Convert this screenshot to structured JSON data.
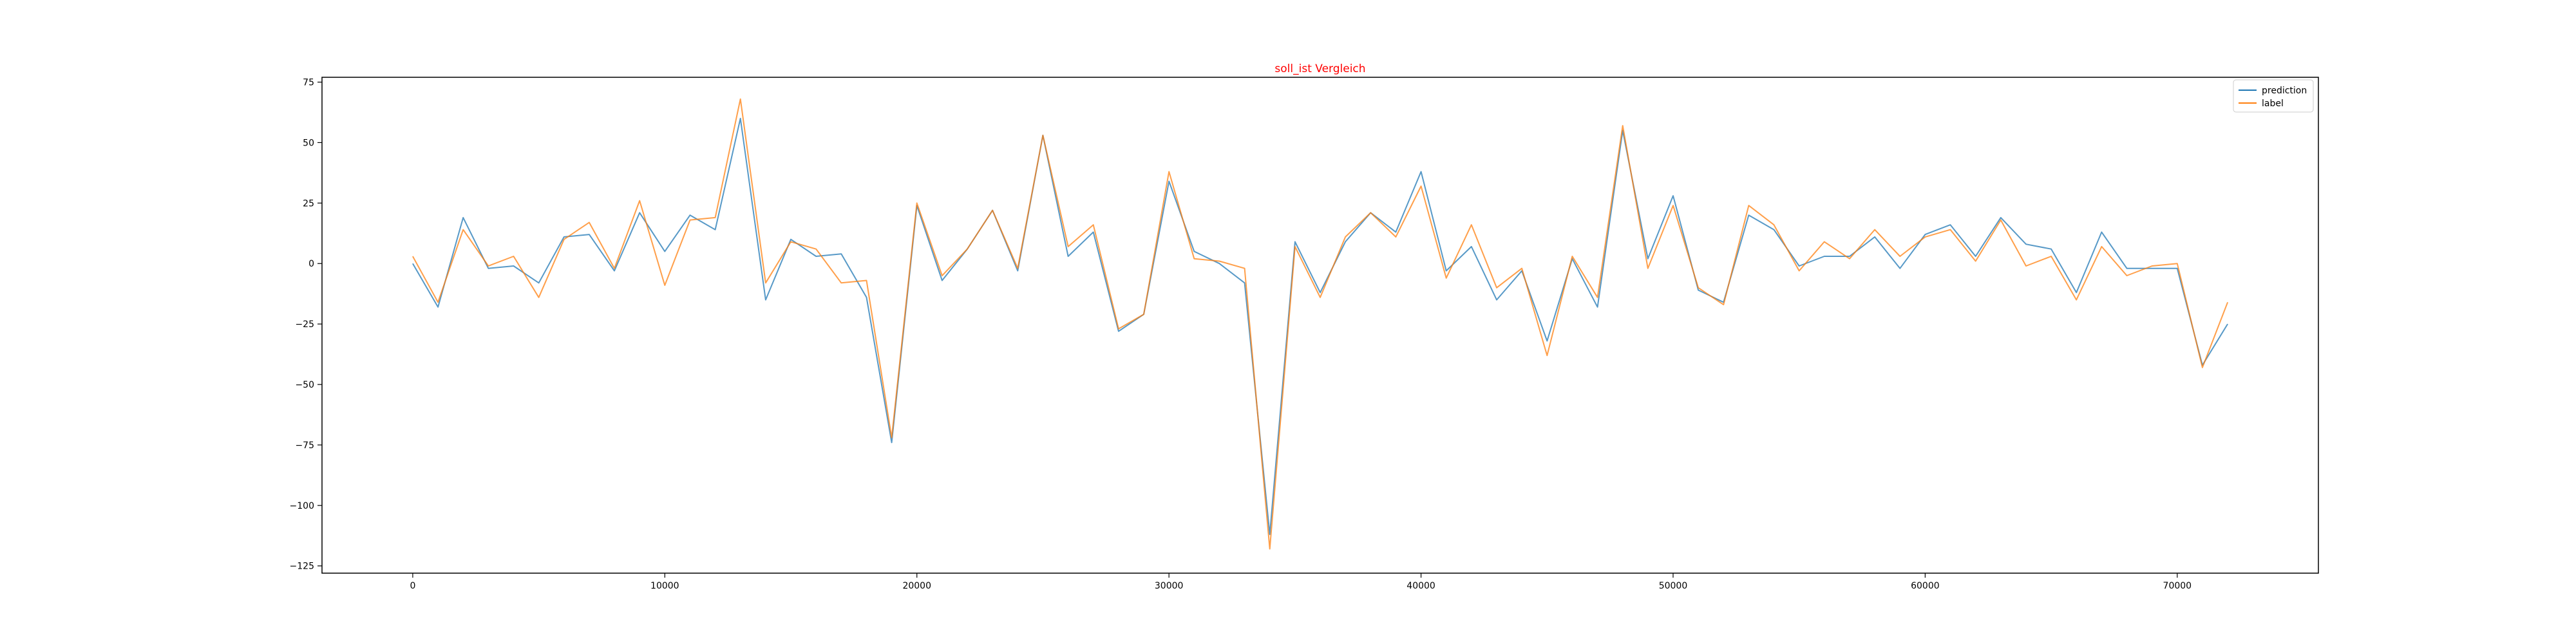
{
  "chart_data": {
    "type": "line",
    "title": "soll_ist Vergleich",
    "title_color": "#ff0000",
    "xlabel": "",
    "ylabel": "",
    "xlim": [
      -3600,
      75600
    ],
    "ylim": [
      -128,
      77
    ],
    "x_ticks": [
      0,
      10000,
      20000,
      30000,
      40000,
      50000,
      60000,
      70000
    ],
    "y_ticks": [
      75,
      50,
      25,
      0,
      -25,
      -50,
      -75,
      -100,
      -125
    ],
    "grid": false,
    "legend_position": "top-right",
    "x": [
      0,
      1000,
      2000,
      3000,
      4000,
      5000,
      6000,
      7000,
      8000,
      9000,
      10000,
      11000,
      12000,
      13000,
      14000,
      15000,
      16000,
      17000,
      18000,
      19000,
      20000,
      21000,
      22000,
      23000,
      24000,
      25000,
      26000,
      27000,
      28000,
      29000,
      30000,
      31000,
      32000,
      33000,
      34000,
      35000,
      36000,
      37000,
      38000,
      39000,
      40000,
      41000,
      42000,
      43000,
      44000,
      45000,
      46000,
      47000,
      48000,
      49000,
      50000,
      51000,
      52000,
      53000,
      54000,
      55000,
      56000,
      57000,
      58000,
      59000,
      60000,
      61000,
      62000,
      63000,
      64000,
      65000,
      66000,
      67000,
      68000,
      69000,
      70000,
      71000,
      72000
    ],
    "series": [
      {
        "name": "prediction",
        "color": "#1f77b4",
        "values": [
          0,
          -18,
          19,
          -2,
          -1,
          -8,
          11,
          12,
          -3,
          21,
          5,
          20,
          14,
          60,
          -15,
          10,
          3,
          4,
          -14,
          -74,
          24,
          -7,
          6,
          22,
          -3,
          53,
          3,
          13,
          -28,
          -21,
          34,
          5,
          0,
          -8,
          -112,
          9,
          -12,
          9,
          21,
          13,
          38,
          -3,
          7,
          -15,
          -3,
          -32,
          2,
          -18,
          55,
          2,
          28,
          -11,
          -16,
          20,
          14,
          -1,
          3,
          3,
          11,
          -2,
          12,
          16,
          3,
          19,
          8,
          6,
          -12,
          13,
          -2,
          -2,
          -2,
          -42,
          -25
        ]
      },
      {
        "name": "label",
        "color": "#ff7f0e",
        "values": [
          3,
          -16,
          14,
          -1,
          3,
          -14,
          10,
          17,
          -2,
          26,
          -9,
          18,
          19,
          68,
          -8,
          9,
          6,
          -8,
          -7,
          -72,
          25,
          -5,
          6,
          22,
          -2,
          53,
          7,
          16,
          -27,
          -21,
          38,
          2,
          1,
          -2,
          -118,
          7,
          -14,
          11,
          21,
          11,
          32,
          -6,
          16,
          -10,
          -2,
          -38,
          3,
          -14,
          57,
          -2,
          24,
          -10,
          -17,
          24,
          16,
          -3,
          9,
          2,
          14,
          3,
          11,
          14,
          1,
          18,
          -1,
          3,
          -15,
          7,
          -5,
          -1,
          0,
          -43,
          -16
        ]
      }
    ]
  }
}
